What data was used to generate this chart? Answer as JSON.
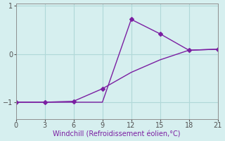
{
  "xlabel": "Windchill (Refroidissement éolien,°C)",
  "line1_x": [
    0,
    3,
    6,
    9,
    12,
    15,
    18,
    21
  ],
  "line1_y": [
    -1.0,
    -1.0,
    -1.0,
    -1.0,
    0.72,
    0.42,
    0.08,
    0.1
  ],
  "line1_markers": [
    0,
    3,
    6,
    12,
    15,
    18,
    21
  ],
  "line2_x": [
    0,
    3,
    6,
    9,
    12,
    15,
    18,
    21
  ],
  "line2_y": [
    -1.0,
    -1.0,
    -0.98,
    -0.72,
    -0.38,
    -0.12,
    0.08,
    0.1
  ],
  "line2_markers": [
    0,
    3,
    6,
    9
  ],
  "color": "#7b1fa2",
  "bg_color": "#d6efef",
  "xlim": [
    0,
    21
  ],
  "ylim": [
    -1.35,
    1.05
  ],
  "xticks": [
    0,
    3,
    6,
    9,
    12,
    15,
    18,
    21
  ],
  "yticks": [
    -1,
    0,
    1
  ],
  "grid_color": "#b0d8d8",
  "marker": "D",
  "marker_size": 3,
  "linewidth": 1.0,
  "label_fontsize": 7,
  "tick_fontsize": 7
}
